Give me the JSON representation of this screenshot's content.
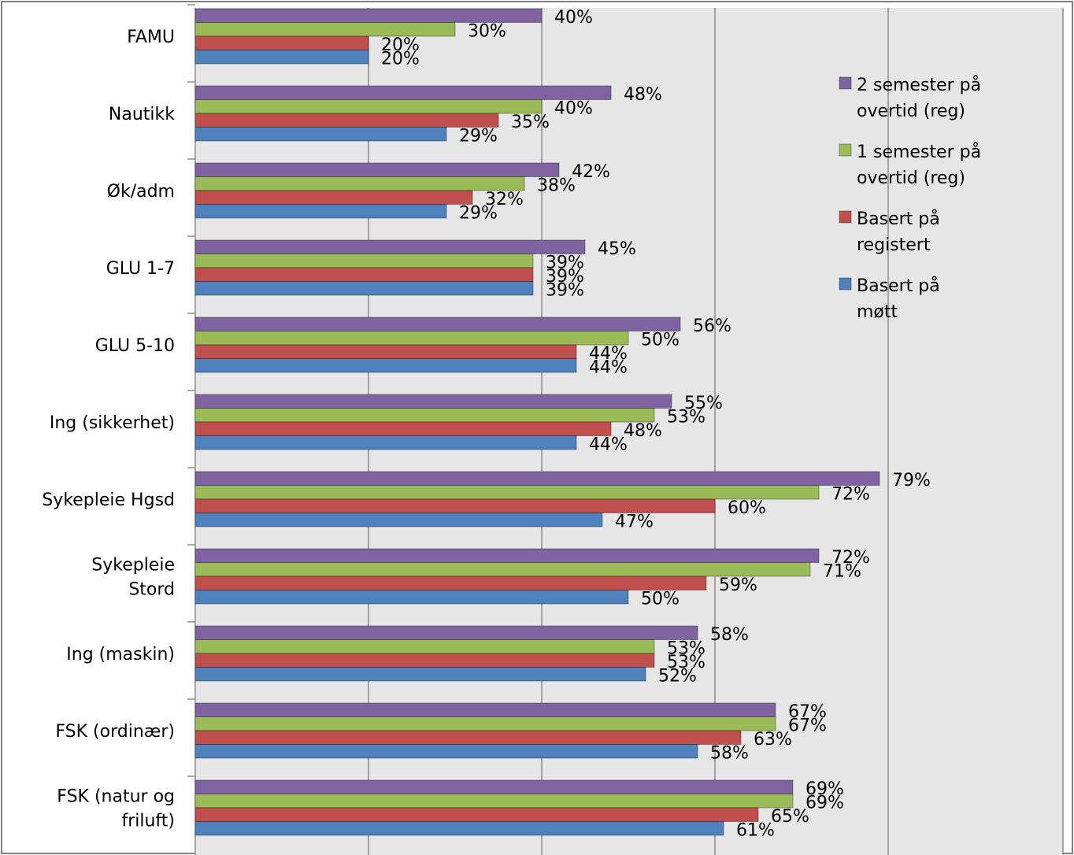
{
  "chart_data": {
    "type": "bar",
    "orientation": "horizontal",
    "categories": [
      [
        "FAMU"
      ],
      [
        "Nautikk"
      ],
      [
        "Øk/adm"
      ],
      [
        "GLU 1-7"
      ],
      [
        "GLU 5-10"
      ],
      [
        "Ing (sikkerhet)"
      ],
      [
        "Sykepleie Hgsd"
      ],
      [
        "Sykepleie",
        "Stord"
      ],
      [
        "Ing (maskin)"
      ],
      [
        "FSK (ordinær)"
      ],
      [
        "FSK (natur og",
        "friluft)"
      ]
    ],
    "series": [
      {
        "key": "s2",
        "name_lines": [
          "2 semester på",
          "overtid (reg)"
        ],
        "color": "#8064A2",
        "values": [
          40,
          48,
          42,
          45,
          56,
          55,
          79,
          72,
          58,
          67,
          69
        ]
      },
      {
        "key": "s1",
        "name_lines": [
          "1 semester på",
          "overtid (reg)"
        ],
        "color": "#9BBB59",
        "values": [
          30,
          40,
          38,
          39,
          50,
          53,
          72,
          71,
          53,
          67,
          69
        ]
      },
      {
        "key": "reg",
        "name_lines": [
          "Basert på",
          "registert"
        ],
        "color": "#C0504D",
        "values": [
          20,
          35,
          32,
          39,
          44,
          48,
          60,
          59,
          53,
          63,
          65
        ]
      },
      {
        "key": "mott",
        "name_lines": [
          "Basert på",
          "møtt"
        ],
        "color": "#4F81BD",
        "values": [
          20,
          29,
          29,
          39,
          44,
          44,
          47,
          50,
          52,
          58,
          61
        ]
      }
    ],
    "value_suffix": "%",
    "xlim": [
      0,
      100
    ],
    "grid": true,
    "gridline_values": [
      20,
      40,
      60,
      80
    ],
    "plot_background": "#E6E6E6",
    "legend_position": "right"
  }
}
